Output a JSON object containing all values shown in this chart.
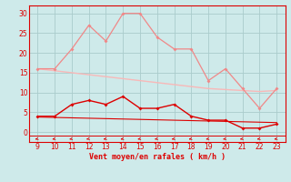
{
  "x": [
    9,
    10,
    11,
    12,
    13,
    14,
    15,
    16,
    17,
    18,
    19,
    20,
    21,
    22,
    23
  ],
  "rafales": [
    16,
    16,
    21,
    27,
    23,
    30,
    30,
    24,
    21,
    21,
    13,
    16,
    11,
    6,
    11
  ],
  "vent_moyen": [
    4,
    4,
    7,
    8,
    7,
    9,
    6,
    6,
    7,
    4,
    3,
    3,
    1,
    1,
    2
  ],
  "tendance_rafales": [
    16,
    15.5,
    15,
    14.5,
    14,
    13.5,
    13,
    12.5,
    12,
    11.5,
    11,
    10.75,
    10.5,
    10.25,
    10.5
  ],
  "tendance_vent": [
    3.8,
    3.7,
    3.6,
    3.5,
    3.4,
    3.3,
    3.2,
    3.1,
    3.0,
    2.9,
    2.8,
    2.7,
    2.6,
    2.5,
    2.4
  ],
  "bg_color": "#ceeaea",
  "grid_color": "#aacccc",
  "line_color_rafales": "#f08888",
  "line_color_vent": "#dd0000",
  "line_color_tend_rafales": "#f8b8b8",
  "line_color_tend_vent": "#dd0000",
  "xlabel": "Vent moyen/en rafales ( km/h )",
  "ylim": [
    -2.5,
    32
  ],
  "xlim": [
    8.5,
    23.5
  ],
  "yticks": [
    0,
    5,
    10,
    15,
    20,
    25,
    30
  ],
  "xticks": [
    9,
    10,
    11,
    12,
    13,
    14,
    15,
    16,
    17,
    18,
    19,
    20,
    21,
    22,
    23
  ],
  "tick_fontsize": 5.5,
  "xlabel_fontsize": 6.0
}
